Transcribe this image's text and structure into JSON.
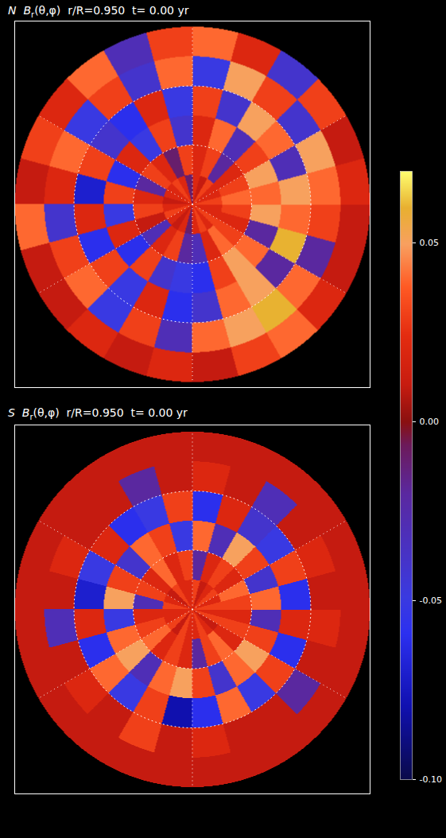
{
  "chart_data": [
    {
      "type": "heatmap",
      "title": {
        "hemisphere": "N",
        "symbol": "B",
        "subscript": "r",
        "args": "(θ,φ)",
        "radius": "r/R=0.950",
        "time": "t= 0.00 yr"
      },
      "theta_edges": [
        0,
        15,
        30,
        45,
        60,
        75,
        90
      ],
      "phi_edges": [
        0,
        15,
        30,
        45,
        60,
        75,
        90,
        105,
        120,
        135,
        150,
        165,
        180,
        195,
        210,
        225,
        240,
        255,
        270,
        285,
        300,
        315,
        330,
        345,
        360
      ],
      "values": [
        [
          0.03,
          0.02,
          0.02,
          0.03,
          0.01,
          0.02,
          -0.01,
          0.02,
          0.03,
          0.02,
          0.02,
          0.01,
          0.02,
          0.03,
          0.02,
          0.01,
          0.02,
          -0.01,
          0.02,
          0.03,
          0.02,
          0.03,
          0.02,
          0.02
        ],
        [
          0.04,
          0.03,
          0.02,
          -0.02,
          0.03,
          0.02,
          0.03,
          -0.01,
          0.02,
          0.03,
          -0.02,
          0.02,
          0.03,
          0.01,
          -0.03,
          0.02,
          0.03,
          -0.02,
          -0.03,
          0.02,
          0.04,
          0.03,
          0.02,
          0.03
        ],
        [
          0.04,
          0.05,
          0.03,
          -0.03,
          0.04,
          0.02,
          -0.04,
          0.03,
          -0.05,
          0.02,
          -0.06,
          0.03,
          -0.05,
          0.02,
          -0.06,
          0.03,
          -0.04,
          -0.05,
          -0.06,
          0.03,
          0.05,
          0.04,
          -0.02,
          0.05
        ],
        [
          0.05,
          -0.03,
          0.04,
          0.05,
          -0.04,
          0.03,
          -0.05,
          0.02,
          -0.06,
          -0.04,
          0.03,
          -0.07,
          0.02,
          -0.06,
          0.03,
          -0.05,
          0.02,
          -0.06,
          -0.04,
          0.04,
          0.05,
          -0.02,
          0.06,
          0.04
        ],
        [
          0.04,
          0.05,
          -0.04,
          0.03,
          0.05,
          -0.05,
          0.04,
          -0.04,
          0.03,
          -0.05,
          0.04,
          0.02,
          -0.04,
          0.03,
          0.04,
          -0.05,
          0.03,
          -0.03,
          0.04,
          0.05,
          0.06,
          0.04,
          -0.02,
          0.03
        ],
        [
          0.02,
          0.01,
          0.03,
          -0.04,
          0.02,
          0.04,
          0.03,
          -0.03,
          0.04,
          0.02,
          0.03,
          0.01,
          0.04,
          0.01,
          0.01,
          0.02,
          0.01,
          0.02,
          0.01,
          0.03,
          0.04,
          0.02,
          0.01,
          0.01
        ]
      ],
      "theta_ticks": [
        30,
        60
      ],
      "phi_ticks": [
        30,
        90,
        150,
        210,
        270,
        330
      ],
      "grid": true,
      "tick_labels": false
    },
    {
      "type": "heatmap",
      "title": {
        "hemisphere": "S",
        "symbol": "B",
        "subscript": "r",
        "args": "(θ,φ)",
        "radius": "r/R=0.950",
        "time": "t= 0.00 yr"
      },
      "theta_edges": [
        0,
        15,
        30,
        45,
        60,
        75,
        90
      ],
      "phi_edges": [
        0,
        15,
        30,
        45,
        60,
        75,
        90,
        105,
        120,
        135,
        150,
        165,
        180,
        195,
        210,
        225,
        240,
        255,
        270,
        285,
        300,
        315,
        330,
        345,
        360
      ],
      "values": [
        [
          0.03,
          0.02,
          0.03,
          0.02,
          0.01,
          0.03,
          0.02,
          0.02,
          0.03,
          0.01,
          0.02,
          0.03,
          0.02,
          0.02,
          0.03,
          0.01,
          0.03,
          0.02,
          0.02,
          0.03,
          0.02,
          0.01,
          0.03,
          0.02
        ],
        [
          0.03,
          0.04,
          0.02,
          0.03,
          0.02,
          -0.02,
          0.03,
          0.02,
          0.04,
          0.02,
          0.03,
          -0.03,
          0.02,
          0.03,
          0.04,
          0.02,
          0.03,
          0.02,
          -0.02,
          0.03,
          0.04,
          0.02,
          0.03,
          0.02
        ],
        [
          0.04,
          -0.04,
          0.03,
          0.05,
          -0.03,
          0.04,
          -0.05,
          0.03,
          0.04,
          -0.04,
          0.03,
          0.05,
          -0.05,
          0.04,
          0.05,
          -0.03,
          0.04,
          0.05,
          0.03,
          -0.04,
          0.04,
          0.05,
          0.03,
          -0.03
        ],
        [
          -0.06,
          0.03,
          -0.05,
          -0.04,
          0.02,
          -0.06,
          0.03,
          -0.05,
          -0.06,
          0.02,
          -0.05,
          -0.07,
          0.02,
          -0.06,
          0.04,
          -0.05,
          0.03,
          -0.08,
          -0.06,
          0.04,
          -0.05,
          0.03,
          -0.06,
          0.02
        ],
        [
          0.01,
          0.02,
          0.01,
          -0.03,
          0.01,
          0.02,
          0.01,
          -0.02,
          0.01,
          0.01,
          0.02,
          0.01,
          -0.03,
          0.01,
          0.02,
          0.01,
          0.03,
          0.01,
          0.02,
          0.01,
          0.01,
          -0.02,
          0.01,
          0.02
        ],
        [
          0.01,
          0.01,
          0.01,
          0.01,
          0.01,
          0.01,
          0.01,
          0.01,
          0.01,
          0.01,
          0.01,
          0.01,
          0.01,
          0.01,
          0.01,
          0.01,
          0.01,
          0.01,
          0.01,
          0.01,
          0.01,
          0.01,
          0.01,
          0.01
        ]
      ],
      "theta_ticks": [
        30,
        60
      ],
      "phi_ticks": [
        30,
        90,
        150,
        210,
        270,
        330
      ],
      "grid": true,
      "tick_labels": false
    }
  ],
  "colorbar": {
    "lim": [
      -0.1,
      0.07
    ],
    "ticks": [
      0.05,
      {
        "value": 0,
        "label": "0.00"
      },
      -0.05,
      {
        "value": -0.1,
        "label": "-0.10"
      }
    ]
  }
}
